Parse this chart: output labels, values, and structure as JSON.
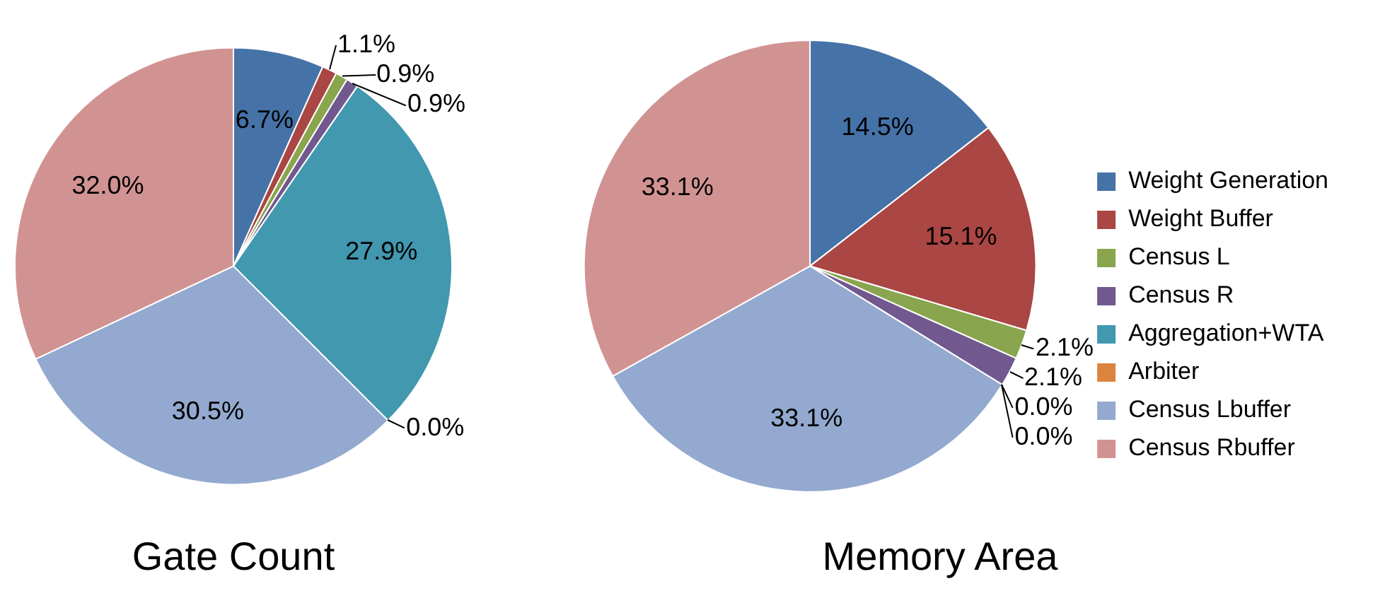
{
  "chart_data": [
    {
      "type": "pie",
      "title": "Gate Count",
      "categories": [
        null,
        null,
        null,
        null,
        null,
        null,
        null,
        null
      ],
      "values": [
        6.7,
        1.1,
        0.9,
        0.9,
        27.9,
        0.0,
        30.5,
        32.0
      ],
      "value_labels": [
        "6.7%",
        "1.1%",
        "0.9%",
        "0.9%",
        "27.9%",
        "0.0%",
        "30.5%",
        "32.0%"
      ],
      "colors": [
        "#4572a7",
        "#aa4643",
        "#89a54e",
        "#71588f",
        "#4198af",
        "#db843d",
        "#93a9cf",
        "#d19392"
      ],
      "legend": false
    },
    {
      "type": "pie",
      "title": "Memory Area",
      "categories": [
        "Weight Generation",
        "Weight Buffer",
        "Census L",
        "Census R",
        "Aggregation+WTA",
        "Arbiter",
        "Census Lbuffer",
        "Census Rbuffer"
      ],
      "values": [
        14.5,
        15.1,
        2.1,
        2.1,
        0.0,
        0.0,
        33.1,
        33.1
      ],
      "value_labels": [
        "14.5%",
        "15.1%",
        "2.1%",
        "2.1%",
        "0.0%",
        "0.0%",
        "33.1%",
        "33.1%"
      ],
      "colors": [
        "#4572a7",
        "#aa4643",
        "#89a54e",
        "#71588f",
        "#4198af",
        "#db843d",
        "#93a9cf",
        "#d19392"
      ],
      "legend": "right"
    }
  ]
}
